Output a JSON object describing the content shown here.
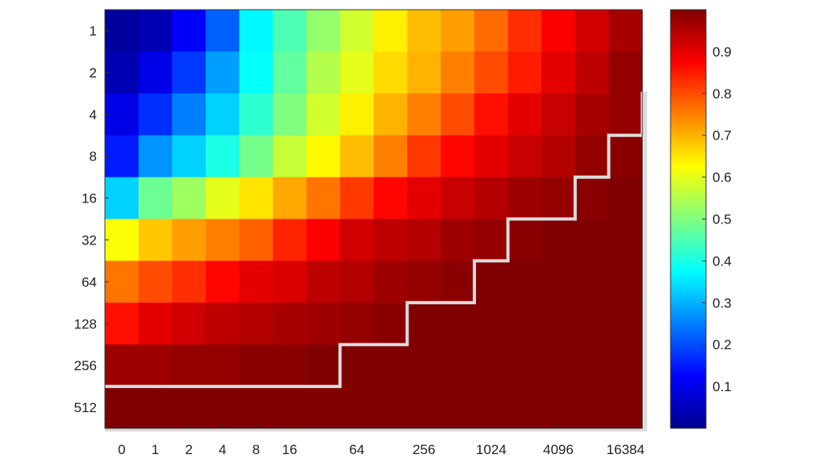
{
  "chart_data": {
    "type": "heatmap",
    "title": "",
    "xlabel": "",
    "ylabel": "",
    "x_tick_labels": [
      "0",
      "1",
      "2",
      "4",
      "8",
      "16",
      "64",
      "256",
      "1024",
      "4096",
      "16384"
    ],
    "x_tick_columns": [
      0,
      1,
      2,
      3,
      4,
      5,
      7,
      9,
      11,
      13,
      15
    ],
    "y_tick_labels": [
      "1",
      "2",
      "4",
      "8",
      "16",
      "32",
      "64",
      "128",
      "256",
      "512"
    ],
    "colormap": "jet",
    "clim": [
      0,
      1
    ],
    "colorbar_ticks": [
      "0.1",
      "0.2",
      "0.3",
      "0.4",
      "0.5",
      "0.6",
      "0.7",
      "0.8",
      "0.9"
    ],
    "n_cols": 16,
    "values": [
      [
        0.03,
        0.05,
        0.12,
        0.22,
        0.37,
        0.45,
        0.52,
        0.58,
        0.64,
        0.69,
        0.72,
        0.77,
        0.83,
        0.88,
        0.92,
        0.96
      ],
      [
        0.05,
        0.1,
        0.18,
        0.28,
        0.38,
        0.47,
        0.55,
        0.6,
        0.66,
        0.7,
        0.75,
        0.8,
        0.85,
        0.9,
        0.94,
        0.98
      ],
      [
        0.1,
        0.17,
        0.25,
        0.33,
        0.42,
        0.5,
        0.58,
        0.64,
        0.7,
        0.75,
        0.8,
        0.86,
        0.9,
        0.93,
        0.96,
        0.98
      ],
      [
        0.15,
        0.27,
        0.33,
        0.4,
        0.49,
        0.57,
        0.63,
        0.69,
        0.75,
        0.82,
        0.87,
        0.9,
        0.93,
        0.95,
        0.98,
        0.99
      ],
      [
        0.33,
        0.48,
        0.53,
        0.6,
        0.65,
        0.71,
        0.76,
        0.82,
        0.87,
        0.9,
        0.93,
        0.95,
        0.97,
        0.98,
        0.99,
        1.0
      ],
      [
        0.62,
        0.68,
        0.72,
        0.75,
        0.78,
        0.84,
        0.88,
        0.92,
        0.94,
        0.95,
        0.97,
        0.98,
        0.99,
        1.0,
        1.0,
        1.0
      ],
      [
        0.76,
        0.8,
        0.83,
        0.87,
        0.9,
        0.91,
        0.94,
        0.95,
        0.97,
        0.98,
        0.99,
        1.0,
        1.0,
        1.0,
        1.0,
        1.0
      ],
      [
        0.86,
        0.9,
        0.92,
        0.94,
        0.95,
        0.96,
        0.97,
        0.98,
        0.99,
        1.0,
        1.0,
        1.0,
        1.0,
        1.0,
        1.0,
        1.0
      ],
      [
        0.97,
        0.97,
        0.98,
        0.98,
        0.99,
        0.99,
        1.0,
        1.0,
        1.0,
        1.0,
        1.0,
        1.0,
        1.0,
        1.0,
        1.0,
        1.0
      ],
      [
        1.0,
        1.0,
        1.0,
        1.0,
        1.0,
        1.0,
        1.0,
        1.0,
        1.0,
        1.0,
        1.0,
        1.0,
        1.0,
        1.0,
        1.0,
        1.0
      ]
    ],
    "boundary": {
      "color": "#dcdcdc",
      "description_rows_by_column": [
        9,
        9,
        9,
        9,
        9,
        9,
        9,
        8,
        8,
        7,
        7,
        6,
        5,
        5,
        4,
        3,
        2
      ]
    },
    "grid": false,
    "colorbar_position": "right"
  }
}
